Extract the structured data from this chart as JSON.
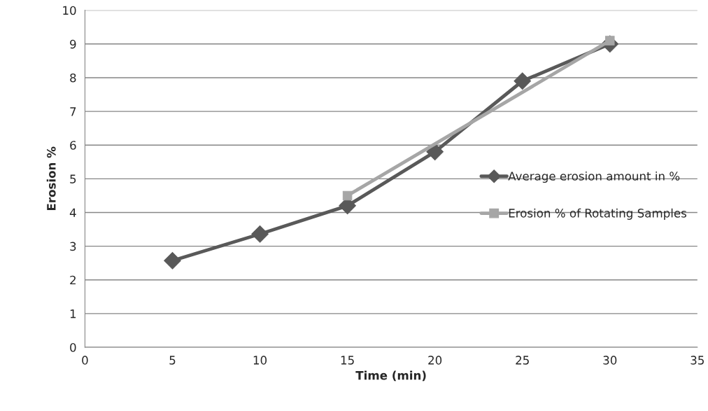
{
  "chart_data": {
    "type": "line",
    "xlabel": "Time (min)",
    "ylabel": "Erosion %",
    "xlim": [
      0,
      35
    ],
    "xticks": [
      0,
      5,
      10,
      15,
      20,
      25,
      30,
      35
    ],
    "ylim": [
      0,
      10
    ],
    "yticks": [
      0,
      1,
      2,
      3,
      4,
      5,
      6,
      7,
      8,
      9,
      10
    ],
    "grid": "y",
    "legend": "right",
    "line_style": "solid",
    "series": [
      {
        "name": "Average erosion amount in %",
        "color": "#595959",
        "marker": "diamond",
        "x": [
          5,
          10,
          15,
          20,
          25,
          30
        ],
        "values": [
          2.57,
          3.36,
          4.2,
          5.8,
          7.9,
          9.0
        ]
      },
      {
        "name": "Erosion % of Rotating Samples",
        "color": "#a6a6a6",
        "marker": "square",
        "x": [
          15,
          30
        ],
        "values": [
          4.5,
          9.1
        ]
      }
    ]
  }
}
